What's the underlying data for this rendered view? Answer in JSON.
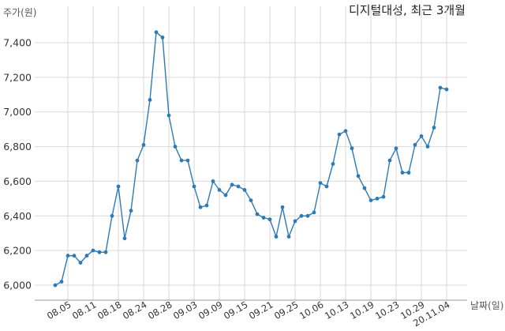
{
  "chart_data": {
    "type": "line",
    "title": "디지털대성, 최근 3개월",
    "ylabel": "주가(원)",
    "xlabel": "날짜(일)",
    "ylim": [
      5900,
      7550
    ],
    "yticks": [
      "6,000",
      "6,200",
      "6,400",
      "6,600",
      "6,800",
      "7,000",
      "7,200",
      "7,400"
    ],
    "ytick_values": [
      6000,
      6200,
      6400,
      6600,
      6800,
      7000,
      7200,
      7400
    ],
    "xtick_labels": [
      "08.05",
      "08.11",
      "08.18",
      "08.24",
      "08.28",
      "09.03",
      "09.09",
      "09.15",
      "09.21",
      "09.25",
      "10.06",
      "10.13",
      "10.19",
      "10.23",
      "10.29",
      "20.11.04"
    ],
    "xtick_indices": [
      2,
      6,
      10,
      14,
      18,
      22,
      26,
      30,
      34,
      38,
      42,
      46,
      50,
      54,
      58,
      62
    ],
    "grid": true,
    "line_color": "#2e7ab5",
    "series": [
      {
        "values": [
          6000,
          6020,
          6170,
          6170,
          6130,
          6170,
          6200,
          6190,
          6190,
          6400,
          6570,
          6270,
          6430,
          6720,
          6810,
          7070,
          7460,
          7430,
          6980,
          6800,
          6720,
          6720,
          6570,
          6450,
          6460,
          6600,
          6550,
          6520,
          6580,
          6570,
          6550,
          6490,
          6410,
          6390,
          6380,
          6280,
          6450,
          6280,
          6370,
          6400,
          6400,
          6420,
          6590,
          6570,
          6700,
          6870,
          6890,
          6790,
          6630,
          6560,
          6490,
          6500,
          6510,
          6720,
          6790,
          6650,
          6650,
          6810,
          6860,
          6800,
          6910,
          7140,
          7130
        ]
      }
    ]
  }
}
